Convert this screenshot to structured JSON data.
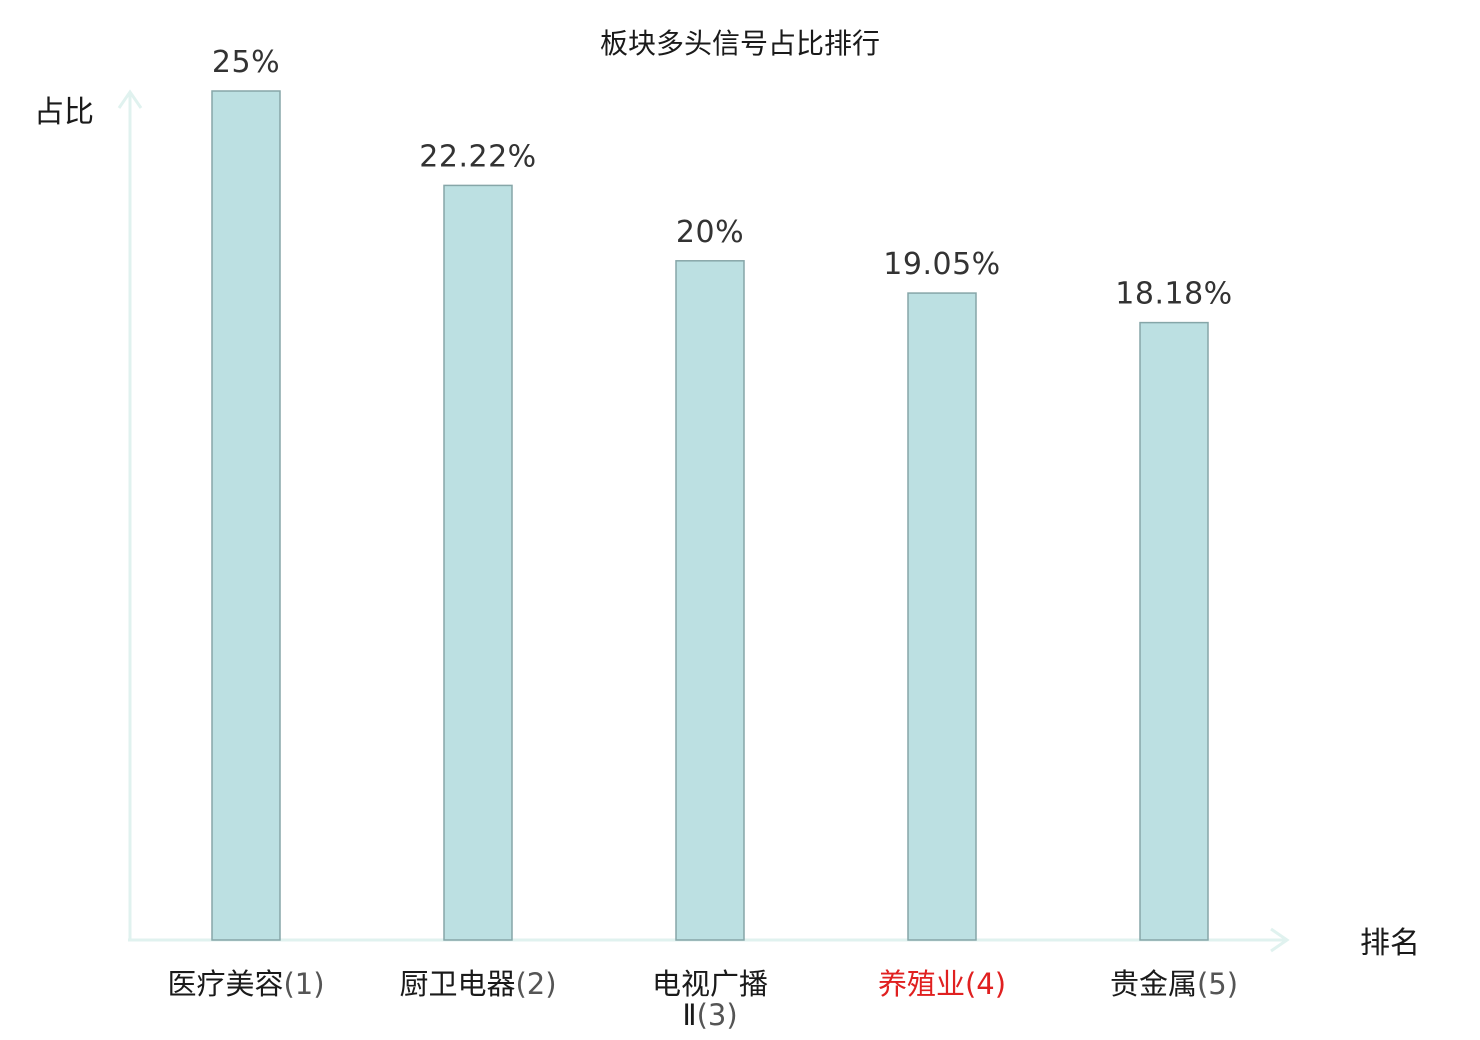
{
  "chart_data": {
    "type": "bar",
    "title": "板块多头信号占比排行",
    "ylabel": "占比",
    "xlabel": "排名",
    "categories": [
      {
        "name": "医疗美容",
        "rank": "(1)",
        "highlight": false
      },
      {
        "name": "厨卫电器",
        "rank": "(2)",
        "highlight": false
      },
      {
        "name": "电视广播Ⅱ",
        "rank": "(3)",
        "highlight": false
      },
      {
        "name": "养殖业",
        "rank": "(4)",
        "highlight": true
      },
      {
        "name": "贵金属",
        "rank": "(5)",
        "highlight": false
      }
    ],
    "values": [
      25,
      22.22,
      20,
      19.05,
      18.18
    ],
    "value_labels": [
      "25%",
      "22.22%",
      "20%",
      "19.05%",
      "18.18%"
    ],
    "ylim": [
      0,
      25
    ],
    "grid": false,
    "colors": {
      "bar_fill": "#bce0e2",
      "bar_stroke": "#86a6a8",
      "axis": "#e0f2ef",
      "highlight": "#e02020"
    }
  }
}
